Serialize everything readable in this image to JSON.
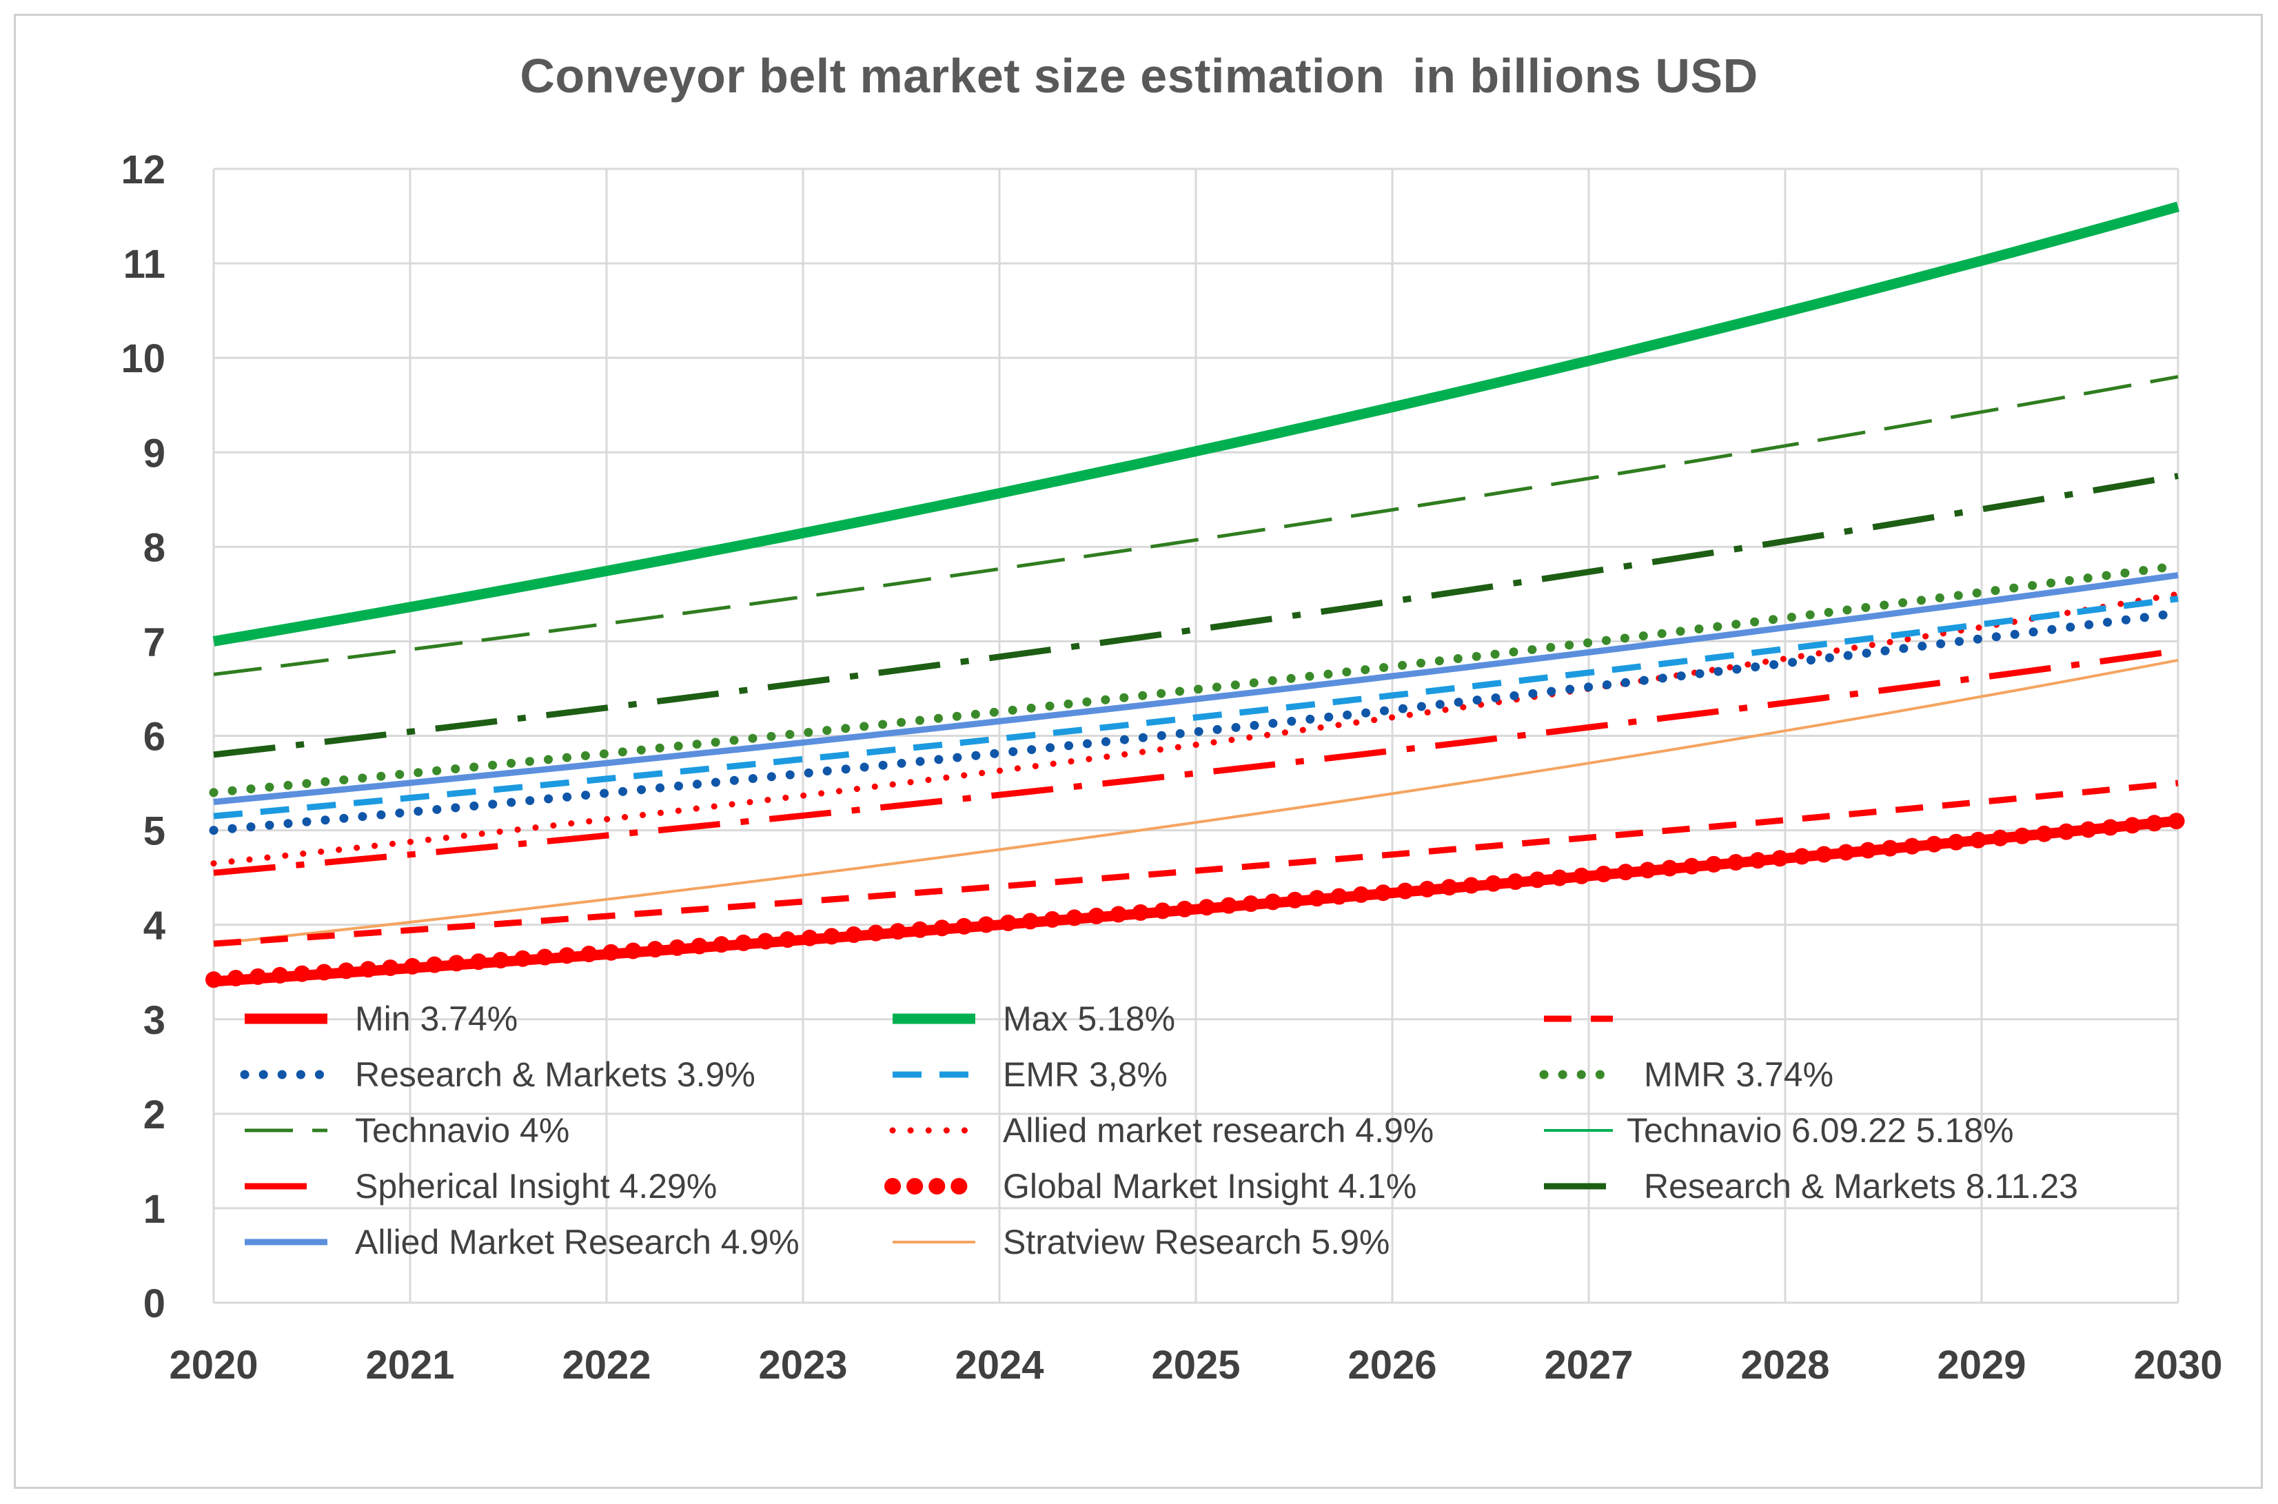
{
  "chart_data": {
    "type": "line",
    "title": "Conveyor belt market size estimation  in billions USD",
    "xlabel": "",
    "ylabel": "",
    "xlim": [
      2020,
      2030
    ],
    "ylim": [
      0,
      12
    ],
    "x_ticks": [
      "2020",
      "2021",
      "2022",
      "2023",
      "2024",
      "2025",
      "2026",
      "2027",
      "2028",
      "2029",
      "2030"
    ],
    "y_ticks": [
      "0",
      "1",
      "2",
      "3",
      "4",
      "5",
      "6",
      "7",
      "8",
      "9",
      "10",
      "11",
      "12"
    ],
    "grid": true,
    "legend_position": "bottom-inside",
    "series": [
      {
        "name": "Min 3.74%",
        "start": 3.4,
        "end": 5.1,
        "color": "#ff0000",
        "style": "solid-thick"
      },
      {
        "name": "Max 5.18%",
        "start": 7.0,
        "end": 11.6,
        "color": "#00b050",
        "style": "solid-thick"
      },
      {
        "name": "",
        "start": 3.8,
        "end": 5.5,
        "color": "#ff0000",
        "style": "dash-red"
      },
      {
        "name": "Research & Markets 3.9%",
        "start": 5.0,
        "end": 7.3,
        "color": "#0f56a8",
        "style": "round-dot"
      },
      {
        "name": "EMR 3,8%",
        "start": 5.15,
        "end": 7.45,
        "color": "#1b9ae0",
        "style": "dash-blue"
      },
      {
        "name": "MMR 3.74%",
        "start": 5.4,
        "end": 7.8,
        "color": "#3a8a2a",
        "style": "round-dot-green"
      },
      {
        "name": "Technavio 4%",
        "start": 6.65,
        "end": 9.8,
        "color": "#2f7d1f",
        "style": "long-dash-green"
      },
      {
        "name": "Allied market research 4.9%",
        "start": 4.65,
        "end": 7.5,
        "color": "#ff0000",
        "style": "round-dot-red"
      },
      {
        "name": "Technavio 6.09.22 5.18%",
        "start": 7.0,
        "end": 11.6,
        "color": "#00b050",
        "style": "thin-solid"
      },
      {
        "name": "Spherical Insight 4.29%",
        "start": 4.55,
        "end": 6.9,
        "color": "#ff0000",
        "style": "long-dash-dot-red"
      },
      {
        "name": "Global Market Insight 4.1%",
        "start": 3.42,
        "end": 5.1,
        "color": "#ff0000",
        "style": "big-dots"
      },
      {
        "name": "Research & Markets 8.11.23",
        "start": 5.8,
        "end": 8.75,
        "color": "#1e5e14",
        "style": "long-dash-dot-dkgreen"
      },
      {
        "name": "Allied Market Research 4.9%",
        "start": 5.3,
        "end": 7.7,
        "color": "#5b8fde",
        "style": "solid-blue"
      },
      {
        "name": "Stratview Research  5.9%",
        "start": 3.8,
        "end": 6.8,
        "color": "#f4a460",
        "style": "thin-orange"
      }
    ]
  }
}
